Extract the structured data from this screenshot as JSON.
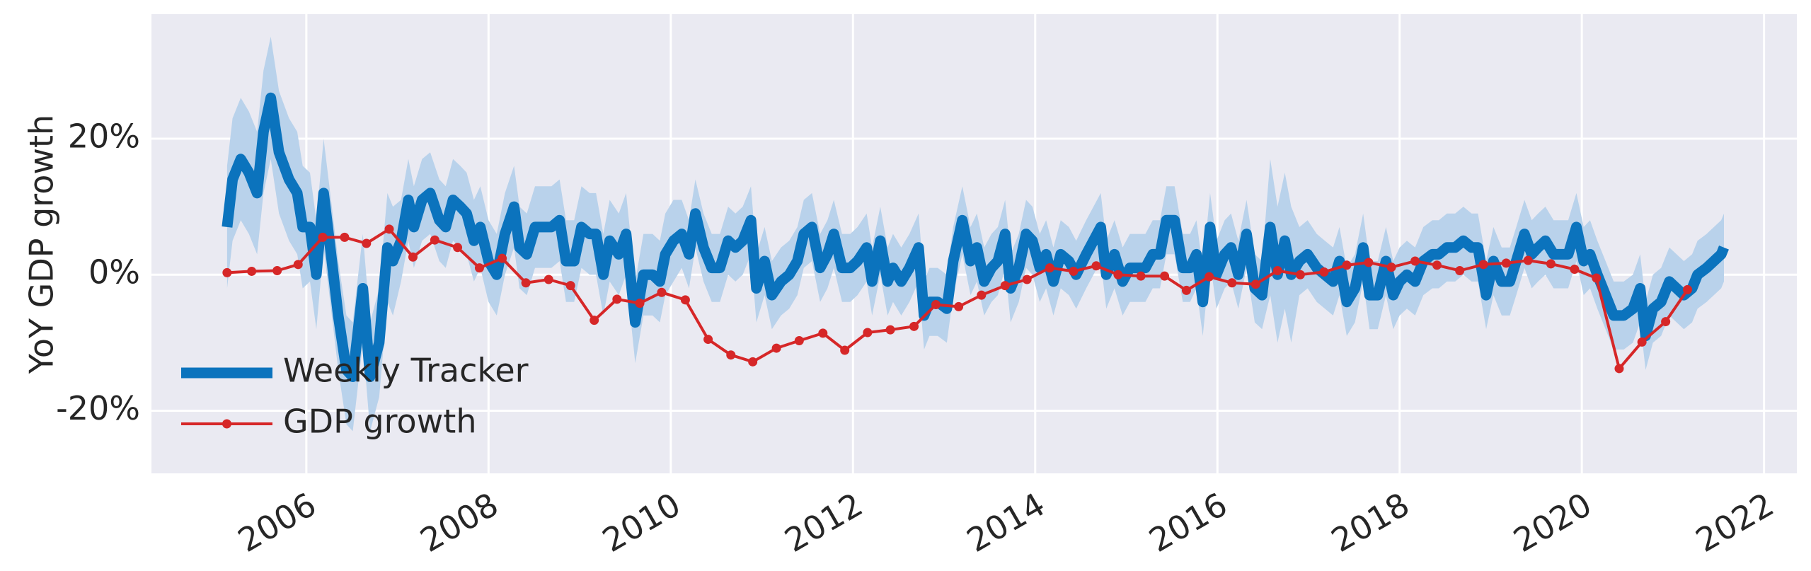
{
  "chart_data": {
    "type": "line",
    "ylabel": "YoY GDP growth",
    "xlim": [
      2004.3,
      2022.36
    ],
    "xticks": [
      2006,
      2008,
      2010,
      2012,
      2014,
      2016,
      2018,
      2020,
      2022
    ],
    "ylim": [
      -29.2,
      38.3
    ],
    "yticks": [
      {
        "value": -20,
        "label": "-20%"
      },
      {
        "value": 0,
        "label": "0%"
      },
      {
        "value": 20,
        "label": "20%"
      }
    ],
    "grid": true,
    "legend": "lower left",
    "series": [
      {
        "name": "Weekly Tracker",
        "color": "#0b73bd",
        "band_color": "#b9d2eb",
        "x": [
          2005.13,
          2005.19,
          2005.28,
          2005.37,
          2005.46,
          2005.53,
          2005.61,
          2005.7,
          2005.81,
          2005.9,
          2005.96,
          2006.04,
          2006.11,
          2006.19,
          2006.28,
          2006.35,
          2006.44,
          2006.51,
          2006.62,
          2006.7,
          2006.8,
          2006.89,
          2006.95,
          2007.04,
          2007.12,
          2007.18,
          2007.27,
          2007.36,
          2007.46,
          2007.53,
          2007.61,
          2007.69,
          2007.76,
          2007.84,
          2007.91,
          2008.0,
          2008.09,
          2008.18,
          2008.28,
          2008.34,
          2008.42,
          2008.51,
          2008.6,
          2008.69,
          2008.78,
          2008.85,
          2008.94,
          2009.02,
          2009.11,
          2009.18,
          2009.26,
          2009.33,
          2009.43,
          2009.51,
          2009.61,
          2009.7,
          2009.8,
          2009.88,
          2009.94,
          2010.03,
          2010.12,
          2010.2,
          2010.27,
          2010.36,
          2010.45,
          2010.54,
          2010.63,
          2010.71,
          2010.79,
          2010.88,
          2010.94,
          2011.03,
          2011.11,
          2011.21,
          2011.3,
          2011.39,
          2011.46,
          2011.55,
          2011.64,
          2011.72,
          2011.79,
          2011.88,
          2011.97,
          2012.05,
          2012.15,
          2012.21,
          2012.3,
          2012.38,
          2012.44,
          2012.53,
          2012.62,
          2012.72,
          2012.78,
          2012.84,
          2012.93,
          2013.03,
          2013.1,
          2013.2,
          2013.29,
          2013.36,
          2013.44,
          2013.52,
          2013.59,
          2013.67,
          2013.73,
          2013.82,
          2013.9,
          2013.97,
          2014.05,
          2014.12,
          2014.2,
          2014.28,
          2014.37,
          2014.45,
          2014.56,
          2014.64,
          2014.72,
          2014.78,
          2014.87,
          2014.96,
          2015.04,
          2015.13,
          2015.21,
          2015.29,
          2015.37,
          2015.44,
          2015.53,
          2015.62,
          2015.7,
          2015.77,
          2015.84,
          2015.92,
          2015.99,
          2016.08,
          2016.15,
          2016.23,
          2016.32,
          2016.41,
          2016.49,
          2016.58,
          2016.66,
          2016.74,
          2016.81,
          2016.9,
          2016.99,
          2017.09,
          2017.18,
          2017.27,
          2017.34,
          2017.42,
          2017.51,
          2017.6,
          2017.67,
          2017.76,
          2017.85,
          2017.93,
          2018.0,
          2018.08,
          2018.17,
          2018.26,
          2018.36,
          2018.43,
          2018.52,
          2018.61,
          2018.7,
          2018.79,
          2018.86,
          2018.95,
          2019.03,
          2019.12,
          2019.21,
          2019.28,
          2019.37,
          2019.45,
          2019.52,
          2019.6,
          2019.69,
          2019.78,
          2019.85,
          2019.94,
          2020.02,
          2020.09,
          2020.17,
          2020.26,
          2020.35,
          2020.46,
          2020.56,
          2020.64,
          2020.7,
          2020.78,
          2020.87,
          2020.96,
          2021.04,
          2021.12,
          2021.21,
          2021.27,
          2021.37,
          2021.45,
          2021.53,
          2021.56
        ],
        "values": [
          7,
          14,
          17,
          15,
          12,
          21,
          26,
          18,
          14,
          12,
          7,
          7,
          0,
          12,
          2,
          -6,
          -14,
          -15,
          -2,
          -15,
          -10,
          4,
          2,
          5,
          11,
          7,
          11,
          12,
          8,
          7,
          11,
          10,
          9,
          5,
          7,
          2,
          0,
          6,
          10,
          4,
          3,
          7,
          7,
          7,
          8,
          2,
          2,
          7,
          6,
          6,
          0,
          5,
          3,
          6,
          -7,
          0,
          0,
          -1,
          3,
          5,
          6,
          3,
          9,
          4,
          1,
          1,
          5,
          4,
          5,
          8,
          -2,
          2,
          -3,
          -1,
          0,
          2,
          6,
          7,
          1,
          3,
          6,
          1,
          1,
          2,
          4,
          -1,
          5,
          -1,
          1,
          -1,
          1,
          4,
          -6,
          -4,
          -4,
          -5,
          2,
          8,
          2,
          4,
          -1,
          1,
          2,
          6,
          -2,
          1,
          6,
          5,
          1,
          3,
          -1,
          3,
          2,
          0,
          3,
          5,
          7,
          0,
          3,
          -1,
          1,
          1,
          1,
          3,
          3,
          8,
          8,
          1,
          1,
          3,
          -4,
          7,
          0,
          3,
          4,
          0,
          6,
          -2,
          -3,
          7,
          0,
          5,
          0,
          2,
          3,
          1,
          0,
          -1,
          2,
          -4,
          -2,
          4,
          -3,
          -3,
          2,
          -3,
          -1,
          0,
          -1,
          2,
          3,
          3,
          4,
          4,
          5,
          4,
          4,
          -3,
          2,
          -1,
          -1,
          2,
          6,
          3,
          4,
          5,
          3,
          3,
          3,
          7,
          2,
          3,
          0,
          -3,
          -6,
          -6,
          -5,
          -2,
          -9,
          -5,
          -4,
          -1,
          -2,
          -3,
          -2,
          0,
          1,
          2,
          3,
          4
        ],
        "upper": [
          16,
          23,
          26,
          24,
          21,
          30,
          35,
          27,
          23,
          21,
          16,
          15,
          8,
          20,
          10,
          2,
          -6,
          -7,
          6,
          -7,
          -2,
          12,
          10,
          11,
          17,
          13,
          17,
          18,
          14,
          13,
          17,
          16,
          15,
          11,
          13,
          8,
          6,
          12,
          16,
          10,
          9,
          13,
          13,
          13,
          14,
          8,
          8,
          13,
          12,
          12,
          6,
          11,
          9,
          12,
          -1,
          6,
          6,
          5,
          9,
          11,
          11,
          8,
          14,
          9,
          6,
          6,
          10,
          9,
          10,
          13,
          3,
          7,
          2,
          4,
          5,
          7,
          11,
          12,
          6,
          8,
          11,
          6,
          6,
          7,
          9,
          4,
          10,
          4,
          6,
          4,
          6,
          9,
          -1,
          1,
          1,
          0,
          7,
          13,
          7,
          9,
          4,
          6,
          7,
          11,
          3,
          6,
          11,
          10,
          6,
          8,
          4,
          8,
          7,
          5,
          8,
          10,
          12,
          5,
          8,
          4,
          6,
          6,
          6,
          8,
          8,
          13,
          13,
          6,
          6,
          8,
          1,
          12,
          5,
          8,
          9,
          5,
          11,
          3,
          2,
          17,
          10,
          15,
          10,
          7,
          8,
          6,
          5,
          4,
          7,
          1,
          3,
          9,
          2,
          2,
          7,
          2,
          4,
          5,
          4,
          7,
          8,
          8,
          9,
          9,
          10,
          9,
          9,
          2,
          7,
          4,
          4,
          7,
          11,
          8,
          9,
          10,
          8,
          8,
          8,
          12,
          7,
          8,
          5,
          2,
          -1,
          -1,
          0,
          3,
          -4,
          0,
          1,
          4,
          3,
          2,
          3,
          5,
          6,
          7,
          8,
          9
        ],
        "lower": [
          -2,
          5,
          8,
          6,
          3,
          12,
          17,
          9,
          5,
          3,
          -2,
          -1,
          -8,
          4,
          -6,
          -14,
          -22,
          -23,
          -10,
          -23,
          -18,
          -4,
          -6,
          -1,
          5,
          1,
          5,
          6,
          2,
          1,
          5,
          4,
          3,
          -1,
          1,
          -4,
          -6,
          0,
          4,
          -2,
          -3,
          1,
          1,
          1,
          2,
          -4,
          -4,
          1,
          0,
          0,
          -6,
          -1,
          -3,
          0,
          -13,
          -6,
          -6,
          -7,
          -3,
          -1,
          1,
          -2,
          4,
          -1,
          -4,
          -4,
          0,
          -1,
          0,
          3,
          -7,
          -3,
          -8,
          -6,
          -5,
          -3,
          1,
          2,
          -4,
          -2,
          1,
          -4,
          -4,
          -3,
          -1,
          -6,
          0,
          -6,
          -4,
          -6,
          -4,
          -1,
          -11,
          -9,
          -9,
          -10,
          -3,
          3,
          -3,
          -1,
          -6,
          -4,
          -3,
          1,
          -7,
          -4,
          1,
          0,
          -4,
          -2,
          -6,
          -2,
          -3,
          -5,
          -2,
          0,
          2,
          -5,
          -2,
          -6,
          -4,
          -4,
          -4,
          -2,
          -2,
          3,
          3,
          -4,
          -4,
          -2,
          -9,
          2,
          -5,
          -2,
          -1,
          -5,
          1,
          -7,
          -8,
          -3,
          -10,
          -5,
          -10,
          -3,
          -2,
          -4,
          -5,
          -6,
          -3,
          -9,
          -7,
          -1,
          -8,
          -8,
          -3,
          -8,
          -6,
          -5,
          -6,
          -3,
          -2,
          -2,
          -1,
          -1,
          0,
          -1,
          -1,
          -8,
          -3,
          -6,
          -6,
          -3,
          1,
          -2,
          -1,
          0,
          -2,
          -2,
          -2,
          2,
          -3,
          -2,
          -5,
          -8,
          -11,
          -11,
          -10,
          -7,
          -14,
          -10,
          -9,
          -6,
          -7,
          -8,
          -7,
          -5,
          -4,
          -3,
          -2,
          -1
        ]
      },
      {
        "name": "GDP growth",
        "color": "#d62728",
        "marker": "o",
        "x": [
          2005.13,
          2005.4,
          2005.68,
          2005.91,
          2006.18,
          2006.42,
          2006.66,
          2006.91,
          2007.17,
          2007.41,
          2007.66,
          2007.9,
          2008.15,
          2008.41,
          2008.66,
          2008.9,
          2009.16,
          2009.41,
          2009.66,
          2009.9,
          2010.16,
          2010.41,
          2010.66,
          2010.9,
          2011.16,
          2011.41,
          2011.67,
          2011.91,
          2012.16,
          2012.41,
          2012.67,
          2012.91,
          2013.16,
          2013.41,
          2013.67,
          2013.91,
          2014.16,
          2014.42,
          2014.67,
          2014.91,
          2015.16,
          2015.42,
          2015.66,
          2015.91,
          2016.16,
          2016.42,
          2016.66,
          2016.91,
          2017.17,
          2017.42,
          2017.66,
          2017.91,
          2018.17,
          2018.41,
          2018.66,
          2018.92,
          2019.17,
          2019.41,
          2019.66,
          2019.92,
          2020.16,
          2020.41,
          2020.66,
          2020.92,
          2021.16
        ],
        "values": [
          0.3,
          0.5,
          0.6,
          1.5,
          5.5,
          5.5,
          4.6,
          6.7,
          2.6,
          5.1,
          4.0,
          1.0,
          2.4,
          -1.2,
          -0.7,
          -1.6,
          -6.7,
          -3.6,
          -4.2,
          -2.6,
          -3.7,
          -9.5,
          -11.8,
          -12.8,
          -10.8,
          -9.7,
          -8.6,
          -11.1,
          -8.5,
          -8.1,
          -7.6,
          -4.4,
          -4.7,
          -3.0,
          -1.6,
          -0.7,
          1.0,
          0.5,
          1.3,
          0.0,
          -0.2,
          -0.2,
          -2.3,
          -0.3,
          -1.2,
          -1.4,
          0.6,
          0.0,
          0.4,
          1.4,
          1.8,
          1.1,
          2.0,
          1.4,
          0.6,
          1.5,
          1.7,
          2.1,
          1.6,
          0.8,
          -0.5,
          -13.8,
          -9.9,
          -6.9,
          -2.2
        ]
      }
    ]
  }
}
